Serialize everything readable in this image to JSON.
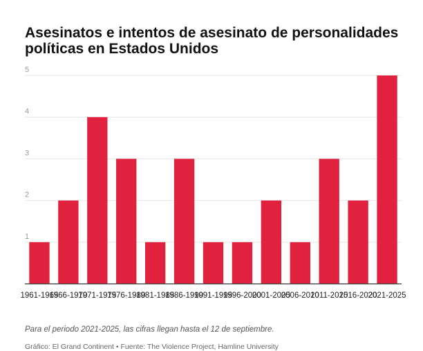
{
  "chart_data": {
    "type": "bar",
    "title": "Asesinatos e intentos de asesinato de personalidades políticas en Estados Unidos",
    "categories": [
      "1961-1965",
      "1966-1970",
      "1971-1975",
      "1976-1980",
      "1981-1985",
      "1986-1990",
      "1991-1995",
      "1996-2000",
      "2001-2005",
      "2006-2010",
      "2011-2015",
      "2016-2020",
      "2021-2025"
    ],
    "values": [
      1,
      2,
      4,
      3,
      1,
      3,
      1,
      1,
      2,
      1,
      3,
      2,
      5
    ],
    "ylim": [
      0,
      5
    ],
    "yticks": [
      1,
      2,
      3,
      4,
      5
    ],
    "bar_color": "#e0223f",
    "grid": true
  },
  "note": "Para el periodo 2021-2025, las cifras llegan hasta el 12 de septiembre.",
  "source": "Gráfico: El Grand Continent • Fuente: The Violence Project, Hamline University"
}
